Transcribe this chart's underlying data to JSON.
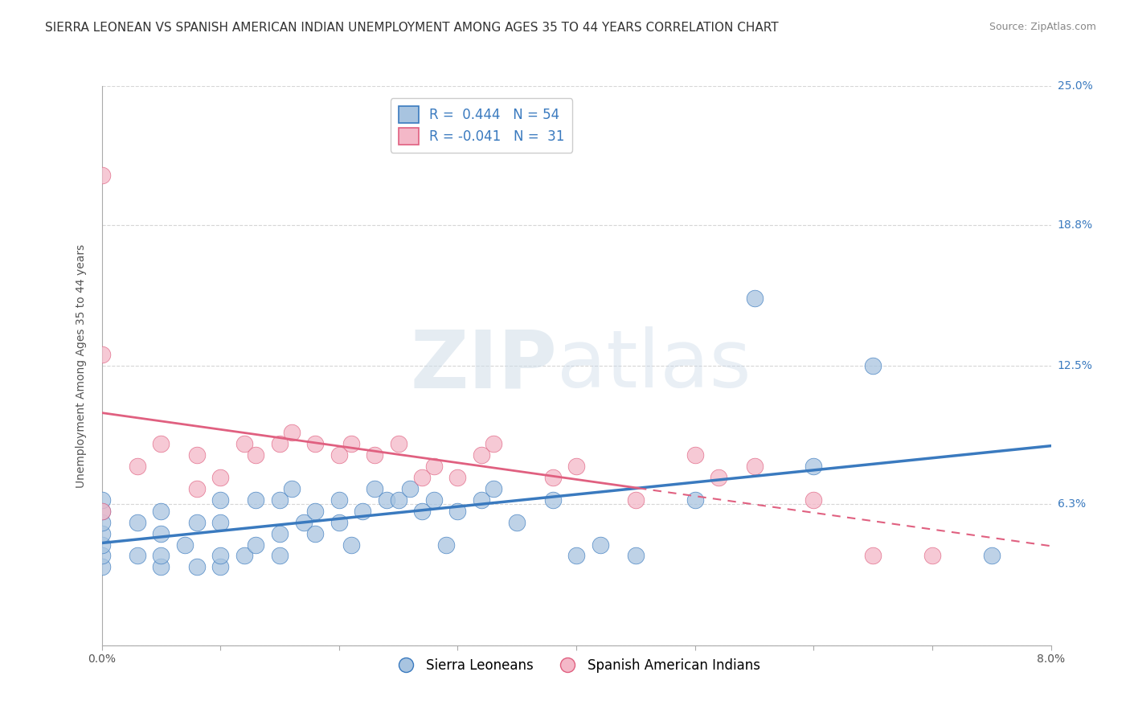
{
  "title": "SIERRA LEONEAN VS SPANISH AMERICAN INDIAN UNEMPLOYMENT AMONG AGES 35 TO 44 YEARS CORRELATION CHART",
  "source": "Source: ZipAtlas.com",
  "ylabel": "Unemployment Among Ages 35 to 44 years",
  "xlim": [
    0.0,
    0.08
  ],
  "ylim": [
    0.0,
    0.25
  ],
  "ytick_labels": [
    "",
    "6.3%",
    "12.5%",
    "18.8%",
    "25.0%"
  ],
  "ytick_values": [
    0.0,
    0.063,
    0.125,
    0.188,
    0.25
  ],
  "xtick_values": [
    0.0,
    0.01,
    0.02,
    0.03,
    0.04,
    0.05,
    0.06,
    0.07,
    0.08
  ],
  "blue_R": 0.444,
  "blue_N": 54,
  "pink_R": -0.041,
  "pink_N": 31,
  "blue_color": "#a8c4e0",
  "pink_color": "#f4b8c8",
  "blue_line_color": "#3a7abf",
  "pink_line_color": "#e06080",
  "watermark_zip": "ZIP",
  "watermark_atlas": "atlas",
  "background_color": "#ffffff",
  "grid_color": "#cccccc",
  "blue_scatter_x": [
    0.0,
    0.0,
    0.0,
    0.0,
    0.0,
    0.0,
    0.0,
    0.003,
    0.003,
    0.005,
    0.005,
    0.005,
    0.005,
    0.007,
    0.008,
    0.008,
    0.01,
    0.01,
    0.01,
    0.01,
    0.012,
    0.013,
    0.013,
    0.015,
    0.015,
    0.015,
    0.016,
    0.017,
    0.018,
    0.018,
    0.02,
    0.02,
    0.021,
    0.022,
    0.023,
    0.024,
    0.025,
    0.026,
    0.027,
    0.028,
    0.029,
    0.03,
    0.032,
    0.033,
    0.035,
    0.038,
    0.04,
    0.042,
    0.045,
    0.05,
    0.055,
    0.06,
    0.065,
    0.075
  ],
  "blue_scatter_y": [
    0.035,
    0.04,
    0.045,
    0.05,
    0.055,
    0.06,
    0.065,
    0.04,
    0.055,
    0.035,
    0.04,
    0.05,
    0.06,
    0.045,
    0.035,
    0.055,
    0.035,
    0.04,
    0.055,
    0.065,
    0.04,
    0.045,
    0.065,
    0.04,
    0.05,
    0.065,
    0.07,
    0.055,
    0.05,
    0.06,
    0.055,
    0.065,
    0.045,
    0.06,
    0.07,
    0.065,
    0.065,
    0.07,
    0.06,
    0.065,
    0.045,
    0.06,
    0.065,
    0.07,
    0.055,
    0.065,
    0.04,
    0.045,
    0.04,
    0.065,
    0.155,
    0.08,
    0.125,
    0.04
  ],
  "pink_scatter_x": [
    0.0,
    0.0,
    0.0,
    0.003,
    0.005,
    0.008,
    0.008,
    0.01,
    0.012,
    0.013,
    0.015,
    0.016,
    0.018,
    0.02,
    0.021,
    0.023,
    0.025,
    0.027,
    0.028,
    0.03,
    0.032,
    0.033,
    0.038,
    0.04,
    0.045,
    0.05,
    0.052,
    0.055,
    0.06,
    0.065,
    0.07
  ],
  "pink_scatter_y": [
    0.06,
    0.13,
    0.21,
    0.08,
    0.09,
    0.07,
    0.085,
    0.075,
    0.09,
    0.085,
    0.09,
    0.095,
    0.09,
    0.085,
    0.09,
    0.085,
    0.09,
    0.075,
    0.08,
    0.075,
    0.085,
    0.09,
    0.075,
    0.08,
    0.065,
    0.085,
    0.075,
    0.08,
    0.065,
    0.04,
    0.04
  ],
  "title_fontsize": 11,
  "axis_fontsize": 10,
  "tick_fontsize": 10,
  "legend_fontsize": 12
}
